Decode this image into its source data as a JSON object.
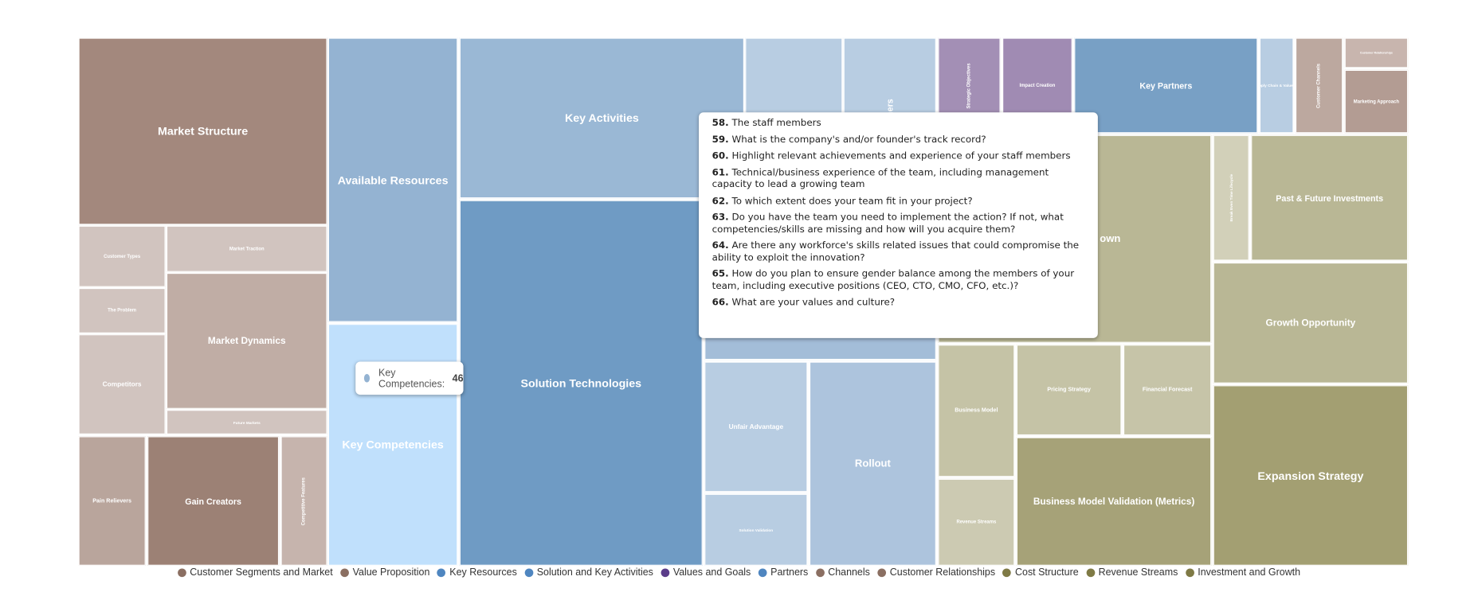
{
  "chart_data": {
    "type": "treemap",
    "title": "",
    "groups": [
      {
        "name": "Customer Segments and Market",
        "color": "#8b6f62",
        "items": [
          {
            "label": "Market Structure",
            "color": "#a3887d"
          },
          {
            "label": "Customer Types",
            "color": "#d1c4bf"
          },
          {
            "label": "The Problem",
            "color": "#d1c4bf"
          },
          {
            "label": "Competitors",
            "color": "#d1c4bf"
          },
          {
            "label": "Market Traction",
            "color": "#d1c4bf"
          },
          {
            "label": "Market Dynamics",
            "color": "#c0ada5"
          },
          {
            "label": "Future Markets",
            "color": "#d1c4bf"
          }
        ]
      },
      {
        "name": "Value Proposition",
        "color": "#8b6f62",
        "items": [
          {
            "label": "Pain Relievers",
            "color": "#b9a59c"
          },
          {
            "label": "Gain Creators",
            "color": "#9c8175"
          },
          {
            "label": "Competitive Features",
            "color": "#c6b4ad"
          }
        ]
      },
      {
        "name": "Key Resources",
        "color": "#4f86c0",
        "items": [
          {
            "label": "Available Resources",
            "color": "#94b3d2"
          },
          {
            "label": "Key Competencies",
            "color": "#c0e0fc",
            "value": 46
          }
        ]
      },
      {
        "name": "Solution and Key Activities",
        "color": "#4f86c0",
        "items": [
          {
            "label": "Key Activities",
            "color": "#9ab8d5"
          },
          {
            "label": "Solution Technologies",
            "color": "#6f9bc4"
          },
          {
            "label": "",
            "color": "#b8cde2"
          },
          {
            "label": "ustomers",
            "color": "#b8cde2"
          },
          {
            "label": "",
            "color": "#a3bdd8"
          },
          {
            "label": "Unfair Advantage",
            "color": "#b8cde2"
          },
          {
            "label": "Solution Validation",
            "color": "#b8cde2"
          },
          {
            "label": "Rollout",
            "color": "#adc4dd"
          }
        ]
      },
      {
        "name": "Values and Goals",
        "color": "#5b3d8a",
        "items": [
          {
            "label": "Strategic Objectives",
            "color": "#a38fb5"
          },
          {
            "label": "Impact Creation",
            "color": "#a08bb3"
          }
        ]
      },
      {
        "name": "Partners",
        "color": "#4f86c0",
        "items": [
          {
            "label": "Key Partners",
            "color": "#78a0c5"
          },
          {
            "label": "Supply Chain & Value Ch",
            "color": "#b8cde2"
          }
        ]
      },
      {
        "name": "Channels",
        "color": "#8b6f62",
        "items": [
          {
            "label": "Customer Channels",
            "color": "#bca89f"
          }
        ]
      },
      {
        "name": "Customer Relationships",
        "color": "#8b6f62",
        "items": [
          {
            "label": "Customer Relationships",
            "color": "#c8b5ae"
          },
          {
            "label": "Marketing Approach",
            "color": "#b39c93"
          }
        ]
      },
      {
        "name": "Cost Structure",
        "color": "#7f7a45",
        "items": [
          {
            "label": "own",
            "color": "#b9b795"
          }
        ]
      },
      {
        "name": "Revenue Streams",
        "color": "#7f7a45",
        "items": [
          {
            "label": "Business Model",
            "color": "#c5c3a6"
          },
          {
            "label": "Revenue Streams",
            "color": "#cccab2"
          },
          {
            "label": "Pricing Strategy",
            "color": "#c5c3a6"
          },
          {
            "label": "Financial Forecast",
            "color": "#c6c4a8"
          },
          {
            "label": "Business Model Validation (Metrics)",
            "color": "#a6a278"
          }
        ]
      },
      {
        "name": "Investment and Growth",
        "color": "#7f7a45",
        "items": [
          {
            "label": "Break Even Time Lifecycle",
            "color": "#d2d0b9"
          },
          {
            "label": "Past & Future Investments",
            "color": "#b9b795"
          },
          {
            "label": "Growth Opportunity",
            "color": "#b9b795"
          },
          {
            "label": "Expansion Strategy",
            "color": "#a39f72"
          }
        ]
      }
    ]
  },
  "hover_tooltip": {
    "label": "Key Competencies:",
    "value": "46"
  },
  "questions_tooltip": [
    {
      "num": "58.",
      "text": "The staff members"
    },
    {
      "num": "59.",
      "text": "What is the company's and/or founder's track record?"
    },
    {
      "num": "60.",
      "text": "Highlight relevant achievements and experience of your staff members"
    },
    {
      "num": "61.",
      "text": "Technical/business experience of the team, including management capacity to lead a growing team"
    },
    {
      "num": "62.",
      "text": "To which extent does your team fit in your project?"
    },
    {
      "num": "63.",
      "text": "Do you have the team you need to implement the action? If not, what competencies/skills are missing and how will you acquire them?"
    },
    {
      "num": "64.",
      "text": "Are there any workforce's skills related issues that could compromise the ability to exploit the innovation?"
    },
    {
      "num": "65.",
      "text": "How do you plan to ensure gender balance among the members of your team, including executive positions (CEO, CTO, CMO, CFO, etc.)?"
    },
    {
      "num": "66.",
      "text": "What are your values and culture?"
    }
  ]
}
